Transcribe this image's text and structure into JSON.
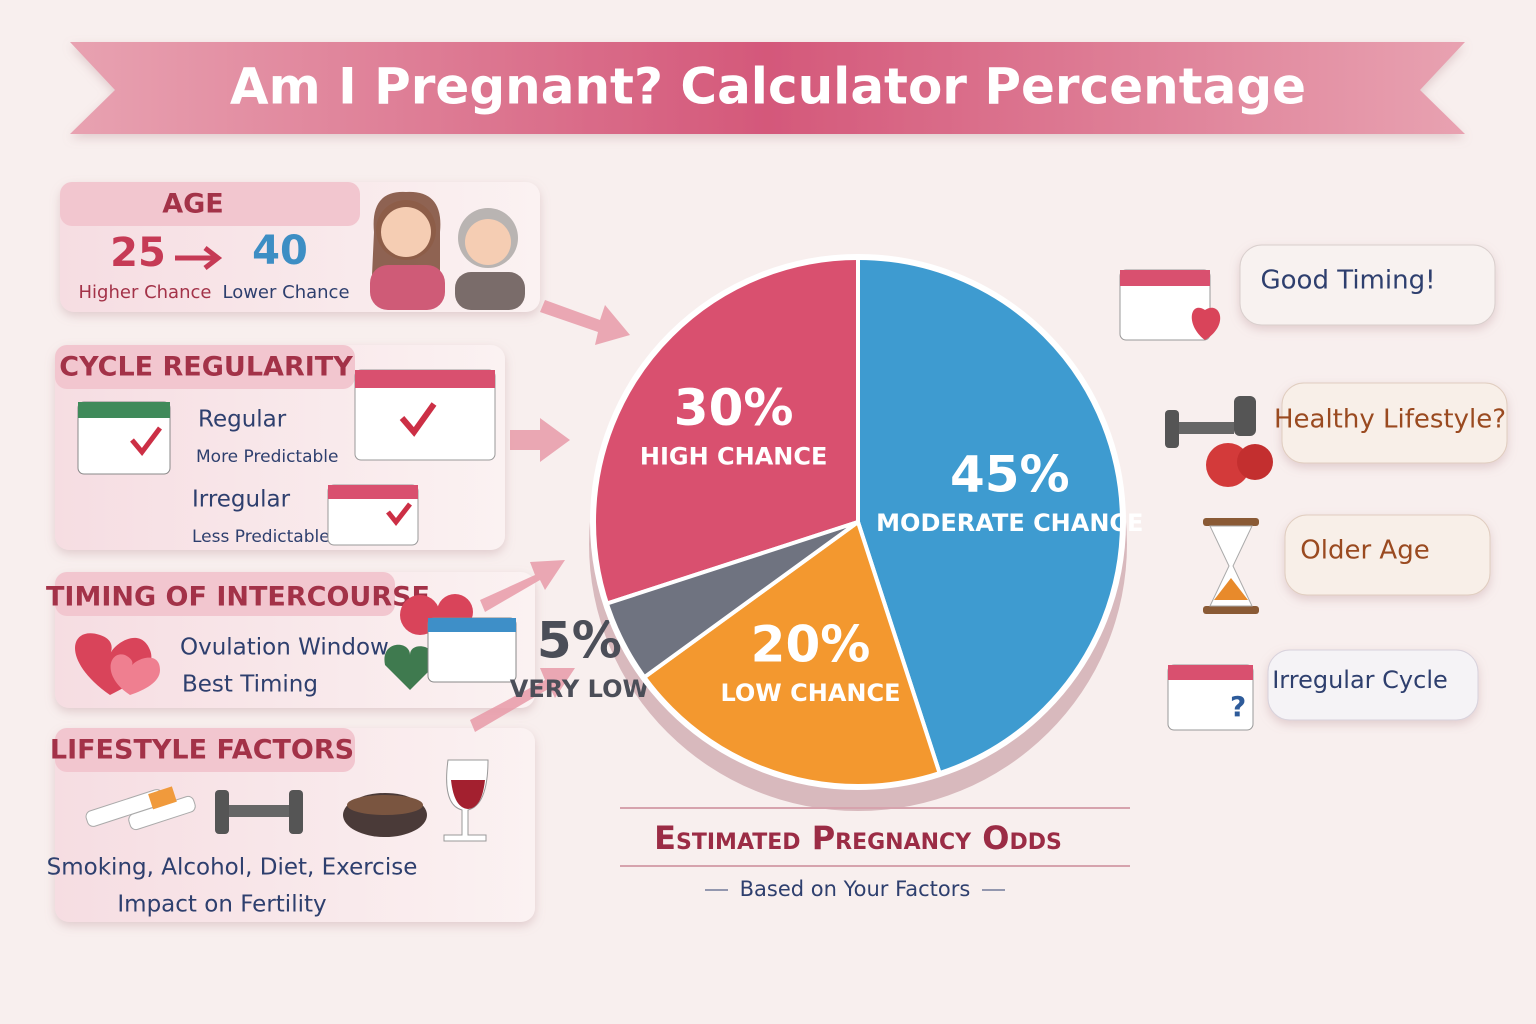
{
  "title": "Am I Pregnant? Calculator Percentage",
  "factors": {
    "age": {
      "heading": "AGE",
      "from": 25,
      "to": 40,
      "from_label": "Higher Chance",
      "to_label": "Lower Chance"
    },
    "cycle": {
      "heading": "CYCLE REGULARITY",
      "regular": "Regular",
      "regular_note": "More Predictable",
      "irregular": "Irregular",
      "irregular_note": "Less Predictable"
    },
    "timing": {
      "heading": "TIMING OF INTERCOURSE",
      "line1": "Ovulation Window",
      "line2": "Best Timing"
    },
    "lifestyle": {
      "heading": "LIFESTYLE FACTORS",
      "line1": "Smoking, Alcohol, Diet, Exercise",
      "line2": "Impact on Fertility"
    }
  },
  "chart_data": {
    "type": "pie",
    "title": "Estimated Pregnancy Odds",
    "subtitle": "Based on Your Factors",
    "categories": [
      "HIGH CHANCE",
      "MODERATE CHANCE",
      "LOW CHANCE",
      "VERY LOW"
    ],
    "values": [
      30,
      45,
      20,
      5
    ],
    "value_labels": [
      "30%",
      "45%",
      "20%",
      "5%"
    ],
    "colors": [
      "#d9506f",
      "#3e9bd0",
      "#f3982f",
      "#6f7380"
    ]
  },
  "callouts": [
    "Good Timing!",
    "Healthy Lifestyle?",
    "Older Age",
    "Irregular Cycle"
  ]
}
